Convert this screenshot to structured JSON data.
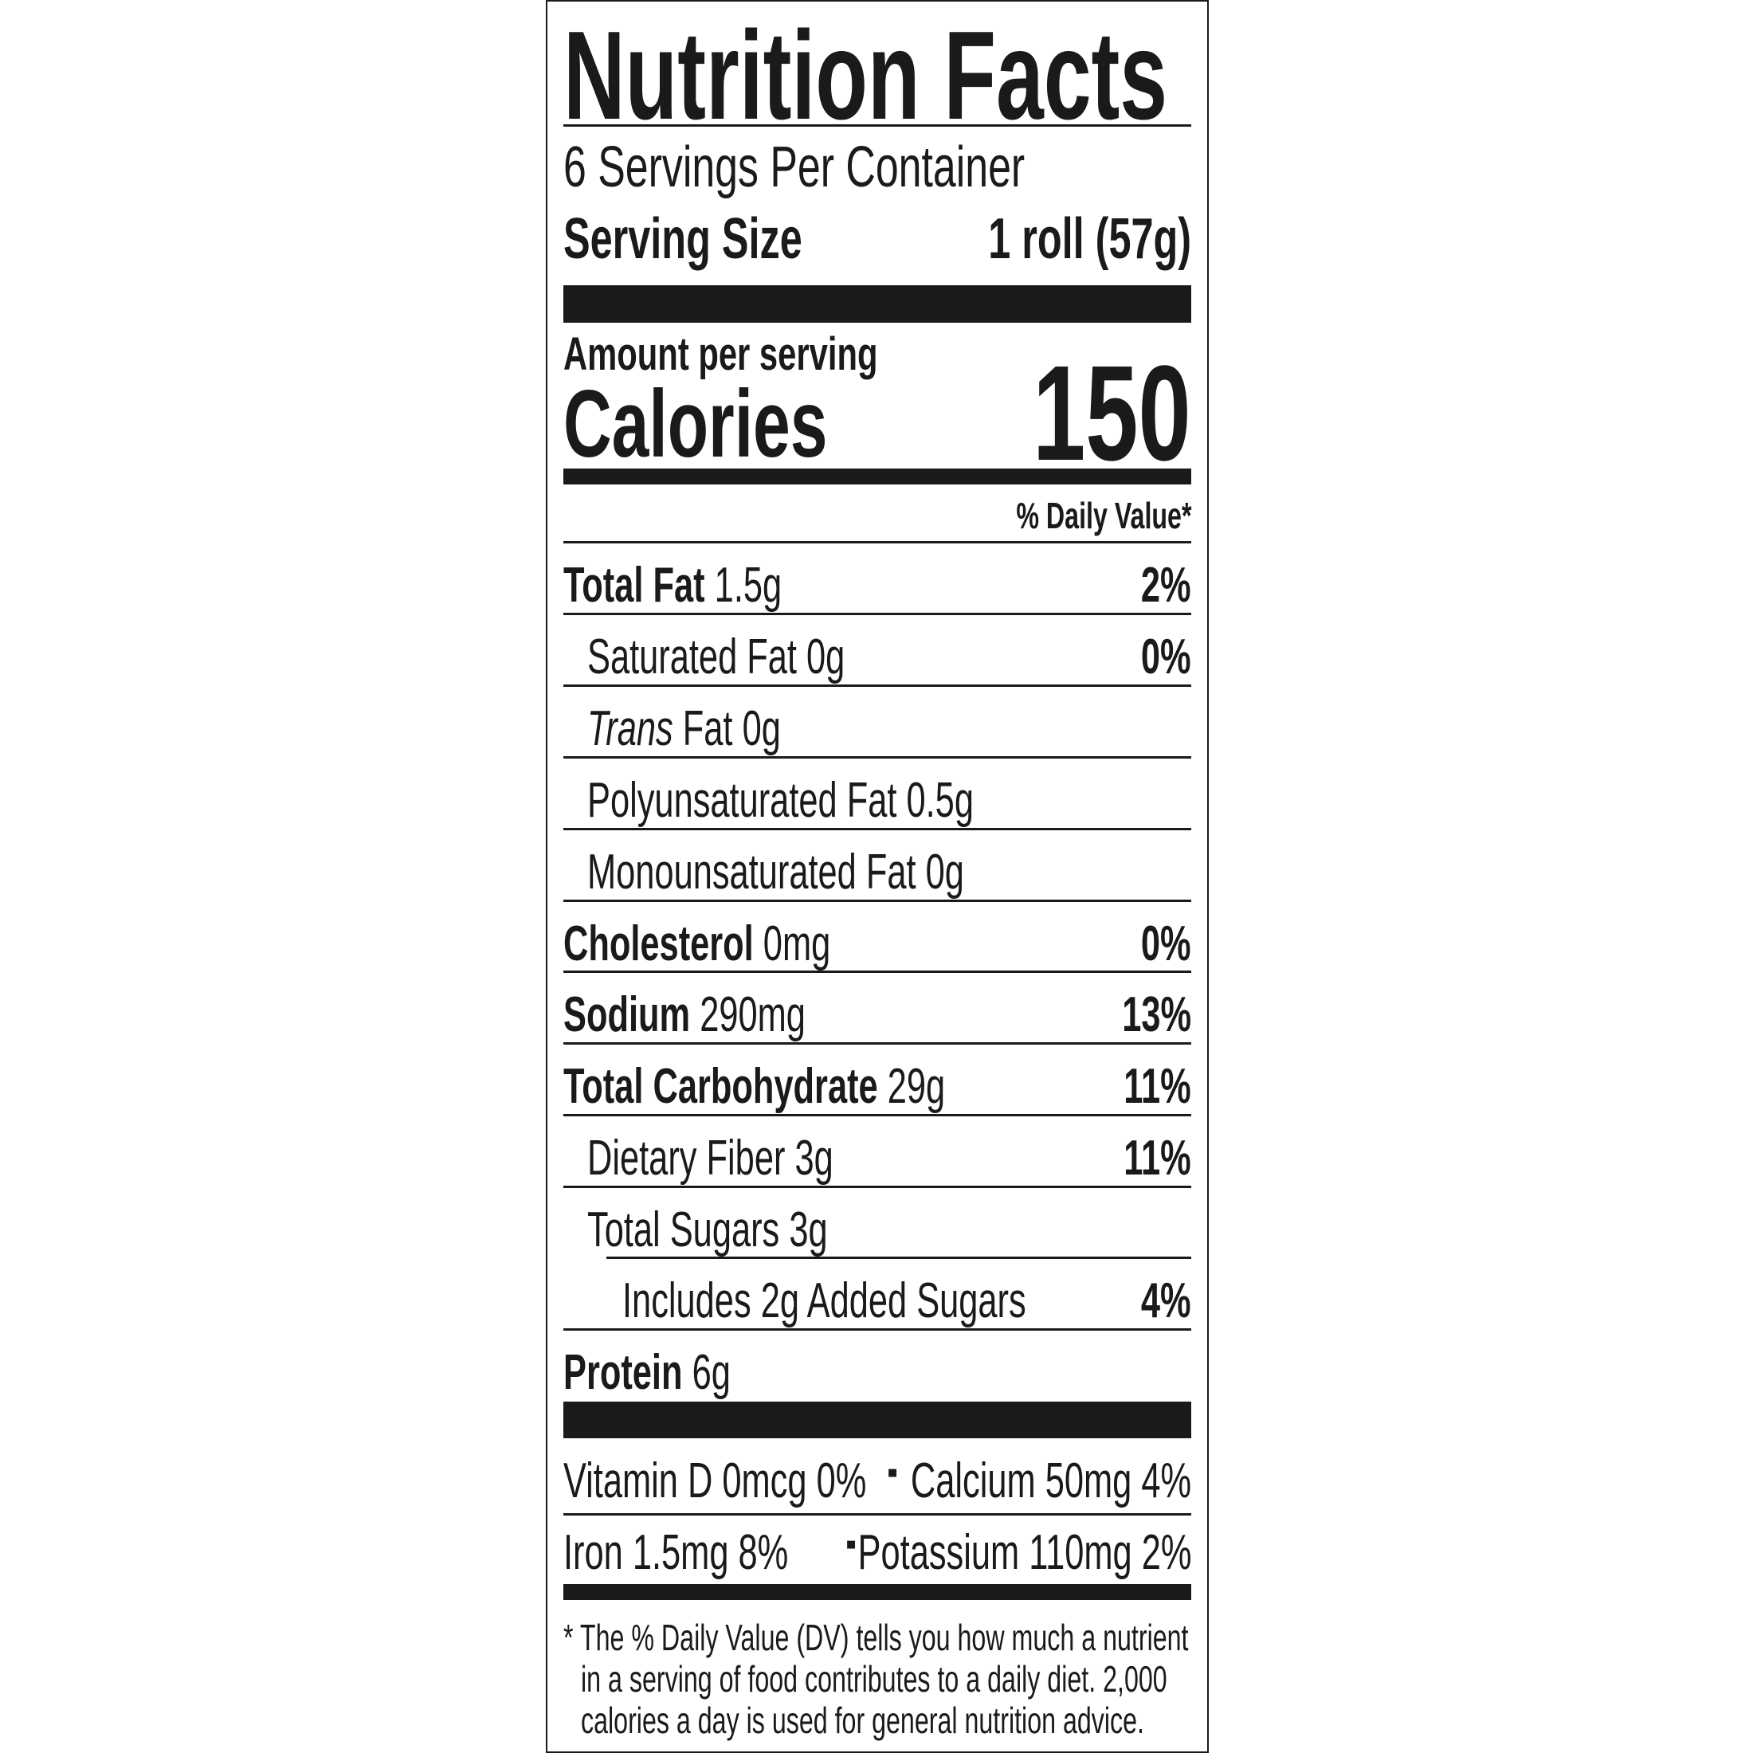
{
  "title": "Nutrition Facts",
  "servings_per_container": "6 Servings Per Container",
  "serving_size_label": "Serving Size",
  "serving_size_value": "1 roll (57g)",
  "amount_per_serving": "Amount per serving",
  "calories_label": "Calories",
  "calories_value": "150",
  "dv_header": "% Daily Value*",
  "nutrients": [
    {
      "name": "Total Fat",
      "amount": "1.5g",
      "dv": "2%"
    },
    {
      "name": "Saturated Fat",
      "amount": "0g",
      "dv": "0%"
    },
    {
      "name": "Trans",
      "name_suffix": "Fat",
      "amount": "0g",
      "dv": ""
    },
    {
      "name": "Polyunsaturated Fat",
      "amount": "0.5g",
      "dv": ""
    },
    {
      "name": "Monounsaturated Fat",
      "amount": "0g",
      "dv": ""
    },
    {
      "name": "Cholesterol",
      "amount": "0mg",
      "dv": "0%"
    },
    {
      "name": "Sodium",
      "amount": "290mg",
      "dv": "13%"
    },
    {
      "name": "Total Carbohydrate",
      "amount": "29g",
      "dv": "11%"
    },
    {
      "name": "Dietary Fiber",
      "amount": "3g",
      "dv": "11%"
    },
    {
      "name": "Total Sugars",
      "amount": "3g",
      "dv": ""
    },
    {
      "name": "Includes 2g Added Sugars",
      "amount": "",
      "dv": "4%"
    },
    {
      "name": "Protein",
      "amount": "6g",
      "dv": ""
    }
  ],
  "vitamins": [
    {
      "text": "Vitamin D 0mcg 0%"
    },
    {
      "text": "Calcium 50mg 4%"
    },
    {
      "text": "Iron 1.5mg 8%"
    },
    {
      "text": "Potassium 110mg 2%"
    }
  ],
  "separator": "▪",
  "footnote": [
    "* The % Daily Value (DV) tells you how much a nutrient",
    "in a serving of food contributes to a daily diet. 2,000",
    "calories a day is used for general nutrition advice."
  ]
}
